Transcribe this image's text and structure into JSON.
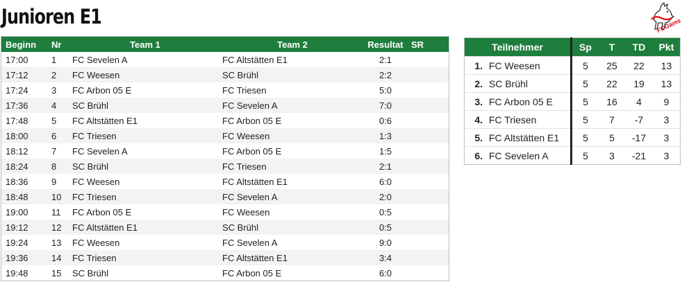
{
  "page": {
    "title": "Junioren E1"
  },
  "logo": {
    "text": "FCGams",
    "icon": "goat-logo-icon",
    "accent": "#e30613"
  },
  "colors": {
    "header_bg": "#1e7e3e",
    "header_text": "#ffffff",
    "row_alt": "#f3f3f3"
  },
  "schedule": {
    "headers": {
      "time": "Beginn",
      "nr": "Nr",
      "team1": "Team 1",
      "team2": "Team 2",
      "result": "Resultat",
      "sr": "SR"
    },
    "rows": [
      {
        "time": "17:00",
        "nr": "1",
        "team1": "FC Sevelen A",
        "team2": "FC Altstätten E1",
        "result": "2:1",
        "sr": ""
      },
      {
        "time": "17:12",
        "nr": "2",
        "team1": "FC Weesen",
        "team2": "SC Brühl",
        "result": "2:2",
        "sr": ""
      },
      {
        "time": "17:24",
        "nr": "3",
        "team1": "FC Arbon 05 E",
        "team2": "FC Triesen",
        "result": "5:0",
        "sr": ""
      },
      {
        "time": "17:36",
        "nr": "4",
        "team1": "SC Brühl",
        "team2": "FC Sevelen A",
        "result": "7:0",
        "sr": ""
      },
      {
        "time": "17:48",
        "nr": "5",
        "team1": "FC Altstätten E1",
        "team2": "FC Arbon 05 E",
        "result": "0:6",
        "sr": ""
      },
      {
        "time": "18:00",
        "nr": "6",
        "team1": "FC Triesen",
        "team2": "FC Weesen",
        "result": "1:3",
        "sr": ""
      },
      {
        "time": "18:12",
        "nr": "7",
        "team1": "FC Sevelen A",
        "team2": "FC Arbon 05 E",
        "result": "1:5",
        "sr": ""
      },
      {
        "time": "18:24",
        "nr": "8",
        "team1": "SC Brühl",
        "team2": "FC Triesen",
        "result": "2:1",
        "sr": ""
      },
      {
        "time": "18:36",
        "nr": "9",
        "team1": "FC Weesen",
        "team2": "FC Altstätten E1",
        "result": "6:0",
        "sr": ""
      },
      {
        "time": "18:48",
        "nr": "10",
        "team1": "FC Triesen",
        "team2": "FC Sevelen A",
        "result": "2:0",
        "sr": ""
      },
      {
        "time": "19:00",
        "nr": "11",
        "team1": "FC Arbon 05 E",
        "team2": "FC Weesen",
        "result": "0:5",
        "sr": ""
      },
      {
        "time": "19:12",
        "nr": "12",
        "team1": "FC Altstätten E1",
        "team2": "SC Brühl",
        "result": "0:5",
        "sr": ""
      },
      {
        "time": "19:24",
        "nr": "13",
        "team1": "FC Weesen",
        "team2": "FC Sevelen A",
        "result": "9:0",
        "sr": ""
      },
      {
        "time": "19:36",
        "nr": "14",
        "team1": "FC Triesen",
        "team2": "FC Altstätten E1",
        "result": "3:4",
        "sr": ""
      },
      {
        "time": "19:48",
        "nr": "15",
        "team1": "SC Brühl",
        "team2": "FC Arbon 05 E",
        "result": "6:0",
        "sr": ""
      }
    ]
  },
  "standings": {
    "headers": {
      "team": "Teilnehmer",
      "sp": "Sp",
      "t": "T",
      "td": "TD",
      "pkt": "Pkt"
    },
    "rows": [
      {
        "rank": "1.",
        "team": "FC Weesen",
        "sp": "5",
        "t": "25",
        "td": "22",
        "pkt": "13"
      },
      {
        "rank": "2.",
        "team": "SC Brühl",
        "sp": "5",
        "t": "22",
        "td": "19",
        "pkt": "13"
      },
      {
        "rank": "3.",
        "team": "FC Arbon 05 E",
        "sp": "5",
        "t": "16",
        "td": "4",
        "pkt": "9"
      },
      {
        "rank": "4.",
        "team": "FC Triesen",
        "sp": "5",
        "t": "7",
        "td": "-7",
        "pkt": "3"
      },
      {
        "rank": "5.",
        "team": "FC Altstätten E1",
        "sp": "5",
        "t": "5",
        "td": "-17",
        "pkt": "3"
      },
      {
        "rank": "6.",
        "team": "FC Sevelen A",
        "sp": "5",
        "t": "3",
        "td": "-21",
        "pkt": "3"
      }
    ]
  }
}
